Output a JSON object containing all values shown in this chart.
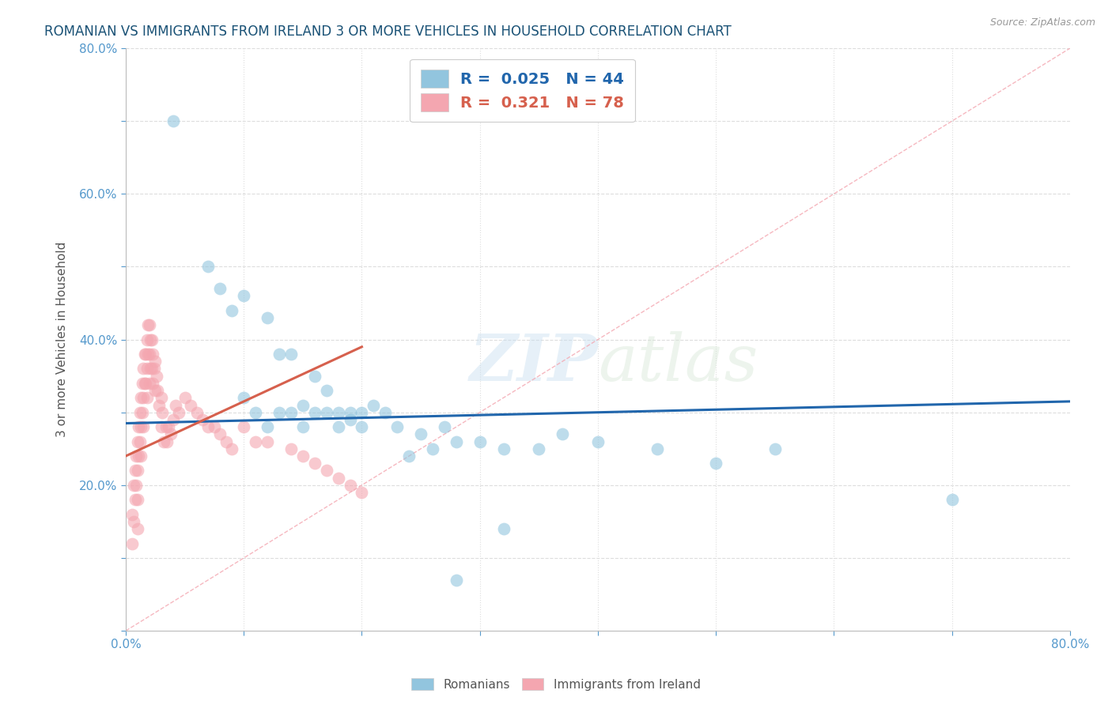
{
  "title": "ROMANIAN VS IMMIGRANTS FROM IRELAND 3 OR MORE VEHICLES IN HOUSEHOLD CORRELATION CHART",
  "source_text": "Source: ZipAtlas.com",
  "ylabel": "3 or more Vehicles in Household",
  "xlim": [
    0.0,
    0.8
  ],
  "ylim": [
    0.0,
    0.8
  ],
  "xticks": [
    0.0,
    0.1,
    0.2,
    0.3,
    0.4,
    0.5,
    0.6,
    0.7,
    0.8
  ],
  "yticks": [
    0.0,
    0.1,
    0.2,
    0.3,
    0.4,
    0.5,
    0.6,
    0.7,
    0.8
  ],
  "blue_color": "#92c5de",
  "pink_color": "#f4a6b0",
  "blue_line_color": "#2166ac",
  "pink_line_color": "#d6604d",
  "ref_line_color": "#f4a6b0",
  "legend_blue_r": "0.025",
  "legend_blue_n": "44",
  "legend_pink_r": "0.321",
  "legend_pink_n": "78",
  "legend_label_blue": "Romanians",
  "legend_label_pink": "Immigrants from Ireland",
  "watermark_zip": "ZIP",
  "watermark_atlas": "atlas",
  "title_color": "#1a5276",
  "blue_scatter_x": [
    0.04,
    0.07,
    0.08,
    0.09,
    0.1,
    0.1,
    0.11,
    0.12,
    0.12,
    0.13,
    0.13,
    0.14,
    0.14,
    0.15,
    0.15,
    0.16,
    0.16,
    0.17,
    0.17,
    0.18,
    0.18,
    0.19,
    0.19,
    0.2,
    0.2,
    0.21,
    0.22,
    0.23,
    0.24,
    0.25,
    0.26,
    0.27,
    0.28,
    0.3,
    0.32,
    0.35,
    0.37,
    0.4,
    0.45,
    0.5,
    0.55,
    0.7,
    0.28,
    0.32
  ],
  "blue_scatter_y": [
    0.7,
    0.5,
    0.47,
    0.44,
    0.32,
    0.46,
    0.3,
    0.43,
    0.28,
    0.38,
    0.3,
    0.38,
    0.3,
    0.31,
    0.28,
    0.35,
    0.3,
    0.33,
    0.3,
    0.3,
    0.28,
    0.29,
    0.3,
    0.3,
    0.28,
    0.31,
    0.3,
    0.28,
    0.24,
    0.27,
    0.25,
    0.28,
    0.26,
    0.26,
    0.25,
    0.25,
    0.27,
    0.26,
    0.25,
    0.23,
    0.25,
    0.18,
    0.07,
    0.14
  ],
  "pink_scatter_x": [
    0.005,
    0.005,
    0.007,
    0.007,
    0.008,
    0.008,
    0.009,
    0.009,
    0.01,
    0.01,
    0.01,
    0.01,
    0.011,
    0.011,
    0.012,
    0.012,
    0.013,
    0.013,
    0.013,
    0.014,
    0.014,
    0.015,
    0.015,
    0.015,
    0.016,
    0.016,
    0.017,
    0.017,
    0.018,
    0.018,
    0.018,
    0.019,
    0.019,
    0.02,
    0.02,
    0.02,
    0.021,
    0.021,
    0.022,
    0.022,
    0.023,
    0.023,
    0.024,
    0.025,
    0.025,
    0.026,
    0.027,
    0.028,
    0.03,
    0.03,
    0.031,
    0.032,
    0.034,
    0.035,
    0.036,
    0.038,
    0.04,
    0.042,
    0.045,
    0.05,
    0.055,
    0.06,
    0.065,
    0.07,
    0.075,
    0.08,
    0.085,
    0.09,
    0.1,
    0.11,
    0.12,
    0.14,
    0.15,
    0.16,
    0.17,
    0.18,
    0.19,
    0.2
  ],
  "pink_scatter_y": [
    0.16,
    0.12,
    0.2,
    0.15,
    0.22,
    0.18,
    0.24,
    0.2,
    0.26,
    0.22,
    0.18,
    0.14,
    0.28,
    0.24,
    0.3,
    0.26,
    0.32,
    0.28,
    0.24,
    0.34,
    0.3,
    0.36,
    0.32,
    0.28,
    0.38,
    0.34,
    0.38,
    0.34,
    0.4,
    0.36,
    0.32,
    0.42,
    0.38,
    0.42,
    0.38,
    0.34,
    0.4,
    0.36,
    0.4,
    0.36,
    0.38,
    0.34,
    0.36,
    0.37,
    0.33,
    0.35,
    0.33,
    0.31,
    0.32,
    0.28,
    0.3,
    0.26,
    0.28,
    0.26,
    0.28,
    0.27,
    0.29,
    0.31,
    0.3,
    0.32,
    0.31,
    0.3,
    0.29,
    0.28,
    0.28,
    0.27,
    0.26,
    0.25,
    0.28,
    0.26,
    0.26,
    0.25,
    0.24,
    0.23,
    0.22,
    0.21,
    0.2,
    0.19
  ],
  "blue_trend_x0": 0.0,
  "blue_trend_y0": 0.285,
  "blue_trend_x1": 0.8,
  "blue_trend_y1": 0.315,
  "pink_trend_x0": 0.0,
  "pink_trend_y0": 0.24,
  "pink_trend_x1": 0.2,
  "pink_trend_y1": 0.39
}
